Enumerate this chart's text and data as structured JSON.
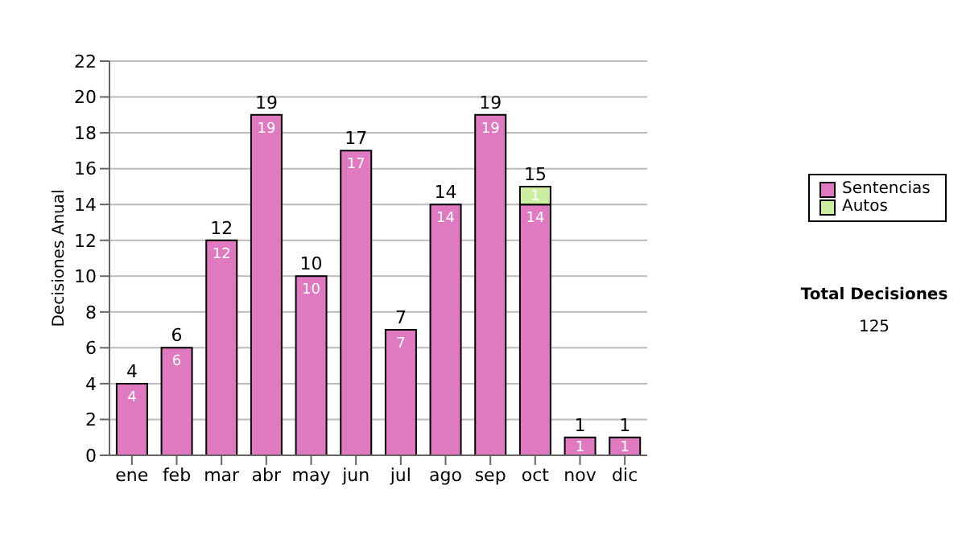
{
  "chart_data": {
    "type": "bar",
    "ylabel": "Decisiones Anual",
    "categories": [
      "ene",
      "feb",
      "mar",
      "abr",
      "may",
      "jun",
      "jul",
      "ago",
      "sep",
      "oct",
      "nov",
      "dic"
    ],
    "series": [
      {
        "name": "Sentencias",
        "color": "#e07ac0",
        "values": [
          4,
          6,
          12,
          19,
          10,
          17,
          7,
          14,
          19,
          14,
          1,
          1
        ]
      },
      {
        "name": "Autos",
        "color": "#cceea0",
        "values": [
          null,
          null,
          null,
          null,
          null,
          null,
          null,
          null,
          null,
          1,
          null,
          null
        ]
      }
    ],
    "stacked": true,
    "data_labels": true,
    "totals": [
      "4",
      "6",
      "12",
      "19",
      "10",
      "17",
      "7",
      "14",
      "19",
      "15",
      "1",
      "1"
    ],
    "ylim": [
      0,
      22
    ],
    "yticks": [
      0,
      2,
      4,
      6,
      8,
      10,
      12,
      14,
      16,
      18,
      20,
      22
    ],
    "grid": "y",
    "legend": "right",
    "annotations": [
      "Total Decisiones",
      "125"
    ]
  }
}
